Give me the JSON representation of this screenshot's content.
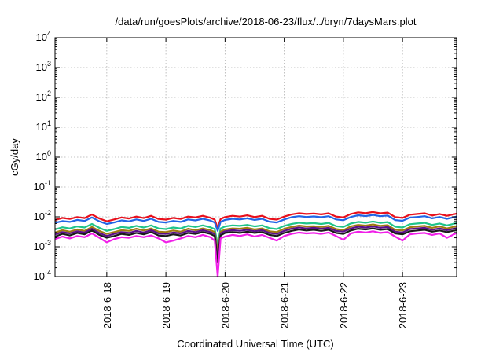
{
  "chart_data": {
    "type": "line",
    "title": "/data/run/goesPlots/archive/2018-06-23/flux/../bryn/7daysMars.plot",
    "xlabel": "Coordinated Universal Time (UTC)",
    "ylabel": "cGy/day",
    "yscale": "log",
    "ylim": [
      0.0001,
      10000
    ],
    "y_ticks": [
      {
        "value": 0.0001,
        "base": "10",
        "exp": "-4"
      },
      {
        "value": 0.001,
        "base": "10",
        "exp": "-3"
      },
      {
        "value": 0.01,
        "base": "10",
        "exp": "-2"
      },
      {
        "value": 0.1,
        "base": "10",
        "exp": "-1"
      },
      {
        "value": 1,
        "base": "10",
        "exp": "0"
      },
      {
        "value": 10,
        "base": "10",
        "exp": "1"
      },
      {
        "value": 100,
        "base": "10",
        "exp": "2"
      },
      {
        "value": 1000,
        "base": "10",
        "exp": "3"
      },
      {
        "value": 10000,
        "base": "10",
        "exp": "4"
      }
    ],
    "xlim": [
      "2018-06-17 03:00",
      "2018-06-23 22:00"
    ],
    "x_ticks": [
      {
        "t": 0.875,
        "label": "2018-6-18"
      },
      {
        "t": 1.875,
        "label": "2018-6-19"
      },
      {
        "t": 2.875,
        "label": "2018-6-20"
      },
      {
        "t": 3.875,
        "label": "2018-6-21"
      },
      {
        "t": 4.875,
        "label": "2018-6-22"
      },
      {
        "t": 5.875,
        "label": "2018-6-23"
      }
    ],
    "grid": true,
    "x": [
      0,
      0.125,
      0.25,
      0.375,
      0.5,
      0.625,
      0.75,
      0.875,
      1,
      1.125,
      1.25,
      1.375,
      1.5,
      1.625,
      1.75,
      1.875,
      2,
      2.125,
      2.25,
      2.375,
      2.5,
      2.625,
      2.7,
      2.75,
      2.8,
      2.875,
      3,
      3.125,
      3.25,
      3.375,
      3.5,
      3.625,
      3.75,
      3.875,
      4,
      4.125,
      4.25,
      4.375,
      4.5,
      4.625,
      4.75,
      4.875,
      5,
      5.125,
      5.25,
      5.375,
      5.5,
      5.625,
      5.75,
      5.875,
      6,
      6.125,
      6.25,
      6.375,
      6.5,
      6.625,
      6.79
    ],
    "series": [
      {
        "color": "#e8101c",
        "values": [
          0.0078,
          0.0092,
          0.0085,
          0.0098,
          0.0091,
          0.012,
          0.0088,
          0.0071,
          0.0082,
          0.0095,
          0.0088,
          0.0102,
          0.0091,
          0.0108,
          0.0085,
          0.0081,
          0.0092,
          0.0085,
          0.0102,
          0.0096,
          0.0108,
          0.0093,
          0.0081,
          0.0042,
          0.0085,
          0.0098,
          0.0108,
          0.0102,
          0.0112,
          0.0098,
          0.0108,
          0.0086,
          0.0081,
          0.0102,
          0.0121,
          0.0132,
          0.0124,
          0.0129,
          0.0121,
          0.0131,
          0.0102,
          0.0096,
          0.0124,
          0.0141,
          0.0133,
          0.0145,
          0.0131,
          0.0139,
          0.0098,
          0.0092,
          0.0118,
          0.0124,
          0.0131,
          0.0111,
          0.0124,
          0.0108,
          0.0128
        ]
      },
      {
        "color": "#2165e6",
        "values": [
          0.0063,
          0.0072,
          0.0068,
          0.0079,
          0.0073,
          0.0095,
          0.0071,
          0.0058,
          0.0065,
          0.0076,
          0.0071,
          0.0082,
          0.0073,
          0.0086,
          0.0068,
          0.0065,
          0.0073,
          0.0068,
          0.0082,
          0.0076,
          0.0086,
          0.0075,
          0.0065,
          0.0034,
          0.0068,
          0.0079,
          0.0086,
          0.0082,
          0.0089,
          0.0079,
          0.0086,
          0.0069,
          0.0065,
          0.0082,
          0.0097,
          0.0105,
          0.0099,
          0.0103,
          0.0097,
          0.0105,
          0.0082,
          0.0077,
          0.0099,
          0.0113,
          0.0106,
          0.0116,
          0.0105,
          0.0111,
          0.0078,
          0.0074,
          0.0094,
          0.0099,
          0.0105,
          0.0089,
          0.0099,
          0.0086,
          0.0102
        ]
      },
      {
        "color": "#1fc48a",
        "values": [
          0.0038,
          0.0045,
          0.0041,
          0.0048,
          0.0044,
          0.0058,
          0.0043,
          0.0034,
          0.0039,
          0.0046,
          0.0043,
          0.005,
          0.0044,
          0.0052,
          0.0041,
          0.0039,
          0.0044,
          0.0041,
          0.005,
          0.0046,
          0.0052,
          0.0045,
          0.0039,
          0.0012,
          0.0041,
          0.0048,
          0.0052,
          0.005,
          0.0054,
          0.0048,
          0.0052,
          0.0042,
          0.0039,
          0.005,
          0.0058,
          0.0064,
          0.006,
          0.0062,
          0.0058,
          0.0063,
          0.0049,
          0.0046,
          0.006,
          0.0068,
          0.0064,
          0.007,
          0.0063,
          0.0067,
          0.0047,
          0.0044,
          0.0057,
          0.006,
          0.0063,
          0.0054,
          0.006,
          0.0052,
          0.0062
        ]
      },
      {
        "color": "#a07a10",
        "values": [
          0.003,
          0.0036,
          0.0032,
          0.0038,
          0.0034,
          0.0046,
          0.0034,
          0.0027,
          0.0031,
          0.0036,
          0.0034,
          0.004,
          0.0035,
          0.0041,
          0.0032,
          0.0031,
          0.0035,
          0.0032,
          0.004,
          0.0036,
          0.0041,
          0.0036,
          0.0031,
          0.0007,
          0.0032,
          0.0038,
          0.0041,
          0.004,
          0.0043,
          0.0038,
          0.0041,
          0.0033,
          0.0031,
          0.004,
          0.0046,
          0.0051,
          0.0048,
          0.0049,
          0.0046,
          0.005,
          0.0039,
          0.0036,
          0.0048,
          0.0054,
          0.0051,
          0.0056,
          0.005,
          0.0053,
          0.0037,
          0.0035,
          0.0045,
          0.0048,
          0.005,
          0.0043,
          0.0048,
          0.0041,
          0.0049
        ]
      },
      {
        "color": "#5b0f8a",
        "values": [
          0.0026,
          0.0031,
          0.0028,
          0.0033,
          0.003,
          0.004,
          0.0029,
          0.0023,
          0.0027,
          0.0031,
          0.0029,
          0.0034,
          0.003,
          0.0036,
          0.0028,
          0.0027,
          0.003,
          0.0028,
          0.0034,
          0.0031,
          0.0036,
          0.0031,
          0.0027,
          0.0004,
          0.0028,
          0.0033,
          0.0036,
          0.0034,
          0.0037,
          0.0033,
          0.0036,
          0.0029,
          0.0027,
          0.0034,
          0.004,
          0.0044,
          0.0041,
          0.0043,
          0.004,
          0.0043,
          0.0034,
          0.0032,
          0.0041,
          0.0047,
          0.0044,
          0.0048,
          0.0043,
          0.0046,
          0.0032,
          0.003,
          0.0039,
          0.0041,
          0.0043,
          0.0037,
          0.0041,
          0.0036,
          0.0042
        ]
      },
      {
        "color": "#1a1a1a",
        "values": [
          0.0022,
          0.0027,
          0.0024,
          0.0029,
          0.0026,
          0.0035,
          0.0025,
          0.002,
          0.0023,
          0.0027,
          0.0025,
          0.0029,
          0.0026,
          0.0031,
          0.0024,
          0.0023,
          0.0026,
          0.0024,
          0.0029,
          0.0027,
          0.0031,
          0.0027,
          0.0023,
          0.0003,
          0.0024,
          0.0029,
          0.0031,
          0.0029,
          0.0032,
          0.0029,
          0.0031,
          0.0025,
          0.0023,
          0.0029,
          0.0034,
          0.0038,
          0.0035,
          0.0037,
          0.0034,
          0.0037,
          0.0029,
          0.0027,
          0.0035,
          0.004,
          0.0038,
          0.0041,
          0.0037,
          0.0039,
          0.0028,
          0.0026,
          0.0033,
          0.0035,
          0.0037,
          0.0032,
          0.0035,
          0.0031,
          0.0036
        ]
      },
      {
        "color": "#f020e8",
        "values": [
          0.0018,
          0.0022,
          0.0019,
          0.0023,
          0.0021,
          0.0028,
          0.002,
          0.0014,
          0.0018,
          0.0021,
          0.002,
          0.0023,
          0.0021,
          0.0024,
          0.0019,
          0.0014,
          0.0016,
          0.0019,
          0.0023,
          0.0021,
          0.0025,
          0.0021,
          0.0016,
          0.0001,
          0.0019,
          0.0022,
          0.0025,
          0.0023,
          0.0026,
          0.0022,
          0.0025,
          0.002,
          0.0016,
          0.0023,
          0.0027,
          0.003,
          0.0028,
          0.0029,
          0.0027,
          0.003,
          0.0023,
          0.0017,
          0.0028,
          0.0032,
          0.003,
          0.0033,
          0.0029,
          0.0031,
          0.0022,
          0.0016,
          0.0026,
          0.0028,
          0.0029,
          0.0025,
          0.0028,
          0.002,
          0.0029
        ]
      }
    ]
  }
}
